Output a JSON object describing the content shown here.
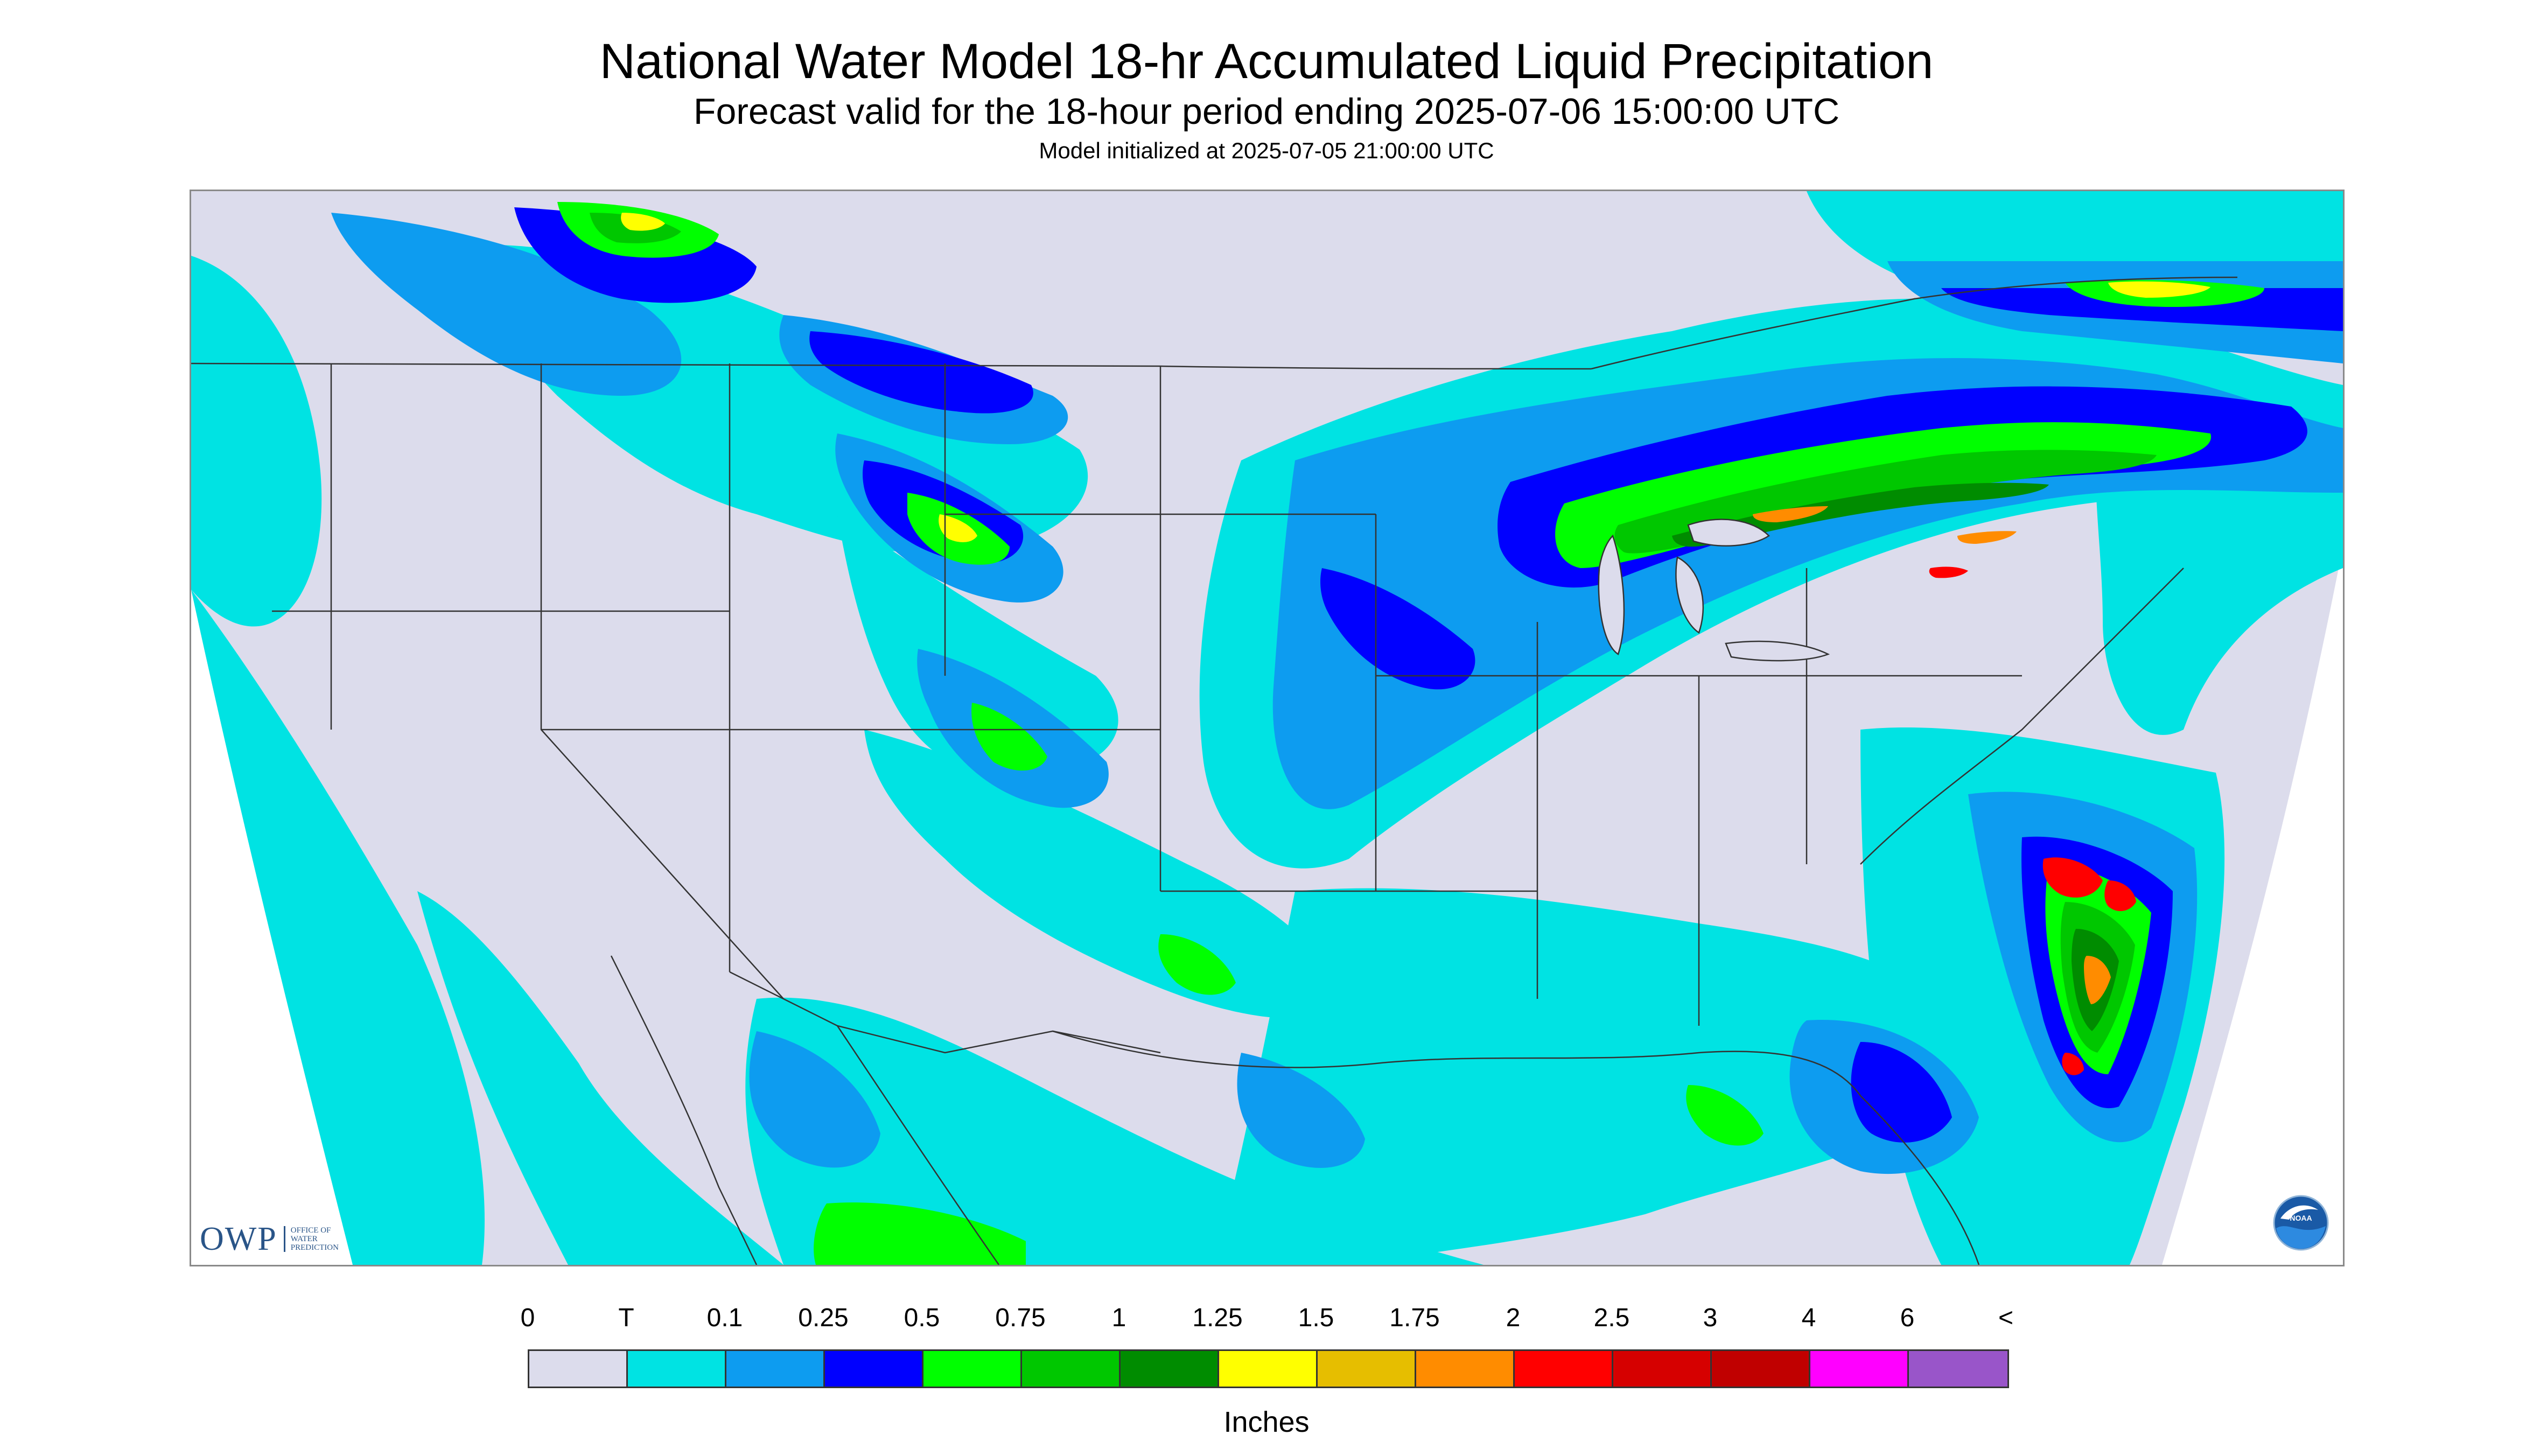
{
  "header": {
    "title": "National Water Model 18-hr Accumulated Liquid Precipitation",
    "subtitle": "Forecast valid for the 18-hour period ending 2025-07-06 15:00:00 UTC",
    "init_line": "Model initialized at 2025-07-05 21:00:00 UTC"
  },
  "logos": {
    "owp_text": "OWP",
    "owp_subtext": "OFFICE OF WATER PREDICTION",
    "noaa_text": "NOAA"
  },
  "legend": {
    "labels": [
      "0",
      "T",
      "0.1",
      "0.25",
      "0.5",
      "0.75",
      "1",
      "1.25",
      "1.5",
      "1.75",
      "2",
      "2.5",
      "3",
      "4",
      "6",
      "<"
    ],
    "colors": [
      "#dcdcec",
      "#00e3e3",
      "#0d9cf0",
      "#0000ff",
      "#00ff00",
      "#00c700",
      "#008c00",
      "#ffff00",
      "#e6be00",
      "#ff8c00",
      "#ff0000",
      "#d60000",
      "#c00000",
      "#ff00ff",
      "#9955c9"
    ],
    "units": "Inches"
  },
  "map": {
    "background_color": "#dcdcec",
    "outside_color": "#ffffff",
    "border_color": "#333333",
    "precip_regions": [
      {
        "level": 1,
        "color": "#00e3e3"
      },
      {
        "level": 2,
        "color": "#0d9cf0"
      },
      {
        "level": 3,
        "color": "#0000ff"
      },
      {
        "level": 4,
        "color": "#00ff00"
      },
      {
        "level": 5,
        "color": "#00c700"
      },
      {
        "level": 6,
        "color": "#008c00"
      },
      {
        "level": 7,
        "color": "#ffff00"
      },
      {
        "level": 9,
        "color": "#ff8c00"
      },
      {
        "level": 10,
        "color": "#ff0000"
      }
    ]
  }
}
